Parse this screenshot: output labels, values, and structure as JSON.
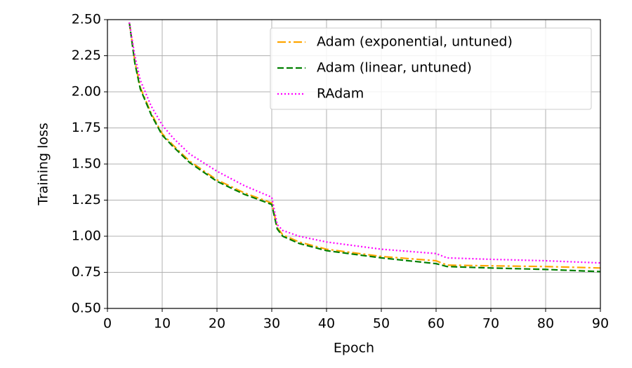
{
  "chart_data": {
    "type": "line",
    "xlabel": "Epoch",
    "ylabel": "Training loss",
    "x": [
      4,
      5,
      6,
      8,
      10,
      12,
      15,
      20,
      25,
      30,
      31,
      32,
      35,
      40,
      50,
      60,
      62,
      70,
      80,
      90
    ],
    "series": [
      {
        "name": "Adam (exponential, untuned)",
        "color": "#ffa500",
        "dash": "dashdot",
        "values": [
          2.48,
          2.21,
          2.03,
          1.85,
          1.71,
          1.63,
          1.52,
          1.39,
          1.3,
          1.23,
          1.06,
          1.01,
          0.96,
          0.91,
          0.86,
          0.83,
          0.8,
          0.795,
          0.79,
          0.78
        ]
      },
      {
        "name": "Adam (linear, untuned)",
        "color": "#007f00",
        "dash": "dashed",
        "values": [
          2.48,
          2.2,
          2.02,
          1.84,
          1.7,
          1.62,
          1.51,
          1.38,
          1.29,
          1.22,
          1.05,
          1.0,
          0.95,
          0.9,
          0.85,
          0.81,
          0.79,
          0.78,
          0.77,
          0.755
        ]
      },
      {
        "name": "RAdam",
        "color": "#ff00ff",
        "dash": "dotted",
        "values": [
          2.48,
          2.25,
          2.08,
          1.9,
          1.77,
          1.68,
          1.57,
          1.45,
          1.35,
          1.27,
          1.08,
          1.04,
          1.0,
          0.96,
          0.91,
          0.88,
          0.85,
          0.84,
          0.83,
          0.815
        ]
      }
    ],
    "xlim": [
      0,
      90
    ],
    "xticks": [
      0,
      10,
      20,
      30,
      40,
      50,
      60,
      70,
      80,
      90
    ],
    "ylim": [
      0.5,
      2.5
    ],
    "yticks": [
      {
        "value": 0.5,
        "label": "0.50"
      },
      {
        "value": 0.75,
        "label": "0.75"
      },
      {
        "value": 1,
        "label": "1.00"
      },
      {
        "value": 1.25,
        "label": "1.25"
      },
      {
        "value": 1.5,
        "label": "1.50"
      },
      {
        "value": 1.75,
        "label": "1.75"
      },
      {
        "value": 2,
        "label": "2.00"
      },
      {
        "value": 2.25,
        "label": "2.25"
      },
      {
        "value": 2.5,
        "label": "2.50"
      }
    ],
    "grid": true,
    "legend": "upper right"
  }
}
